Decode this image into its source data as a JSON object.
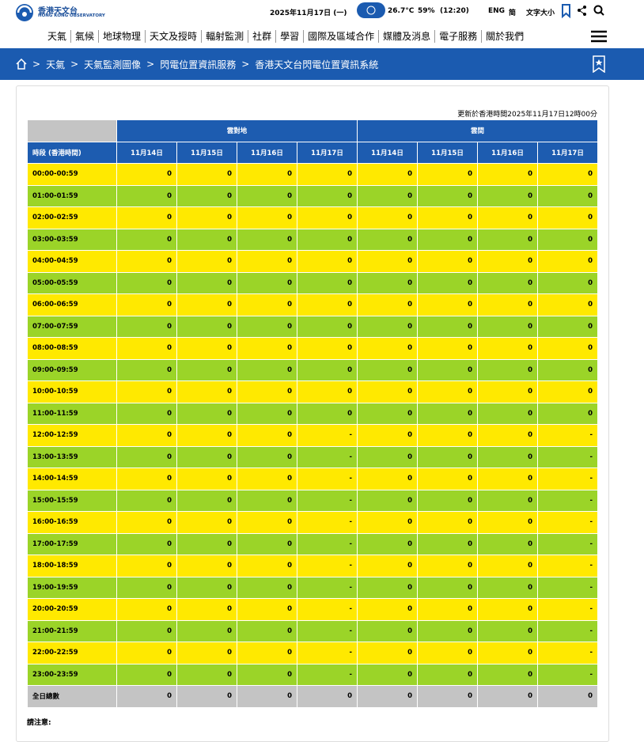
{
  "header": {
    "logo_zh": "香港天文台",
    "logo_en": "HONG KONG OBSERVATORY",
    "date": "2025年11月17日 (一)",
    "temperature": "26.7°C",
    "humidity": "59%",
    "time": "(12:20)",
    "lang_en": "ENG",
    "lang_sc": "简",
    "font_size": "文字大小"
  },
  "nav": [
    "天氣",
    "氣候",
    "地球物理",
    "天文及授時",
    "輻射監測",
    "社群",
    "學習",
    "國際及區域合作",
    "媒體及消息",
    "電子服務",
    "關於我們"
  ],
  "breadcrumb": [
    "天氣",
    "天氣監測圖像",
    "閃電位置資訊服務",
    "香港天文台閃電位置資訊系統"
  ],
  "updated": "更新於香港時間2025年11月17日12時00分",
  "table": {
    "groups": [
      "雲對地",
      "雲間"
    ],
    "period_header": "時段 (香港時間)",
    "dates": [
      "11月14日",
      "11月15日",
      "11月16日",
      "11月17日"
    ],
    "rows": [
      {
        "label": "00:00-00:59",
        "cells": [
          0,
          0,
          0,
          0,
          0,
          0,
          0,
          0
        ]
      },
      {
        "label": "01:00-01:59",
        "cells": [
          0,
          0,
          0,
          0,
          0,
          0,
          0,
          0
        ]
      },
      {
        "label": "02:00-02:59",
        "cells": [
          0,
          0,
          0,
          0,
          0,
          0,
          0,
          0
        ]
      },
      {
        "label": "03:00-03:59",
        "cells": [
          0,
          0,
          0,
          0,
          0,
          0,
          0,
          0
        ]
      },
      {
        "label": "04:00-04:59",
        "cells": [
          0,
          0,
          0,
          0,
          0,
          0,
          0,
          0
        ]
      },
      {
        "label": "05:00-05:59",
        "cells": [
          0,
          0,
          0,
          0,
          0,
          0,
          0,
          0
        ]
      },
      {
        "label": "06:00-06:59",
        "cells": [
          0,
          0,
          0,
          0,
          0,
          0,
          0,
          0
        ]
      },
      {
        "label": "07:00-07:59",
        "cells": [
          0,
          0,
          0,
          0,
          0,
          0,
          0,
          0
        ]
      },
      {
        "label": "08:00-08:59",
        "cells": [
          0,
          0,
          0,
          0,
          0,
          0,
          0,
          0
        ]
      },
      {
        "label": "09:00-09:59",
        "cells": [
          0,
          0,
          0,
          0,
          0,
          0,
          0,
          0
        ]
      },
      {
        "label": "10:00-10:59",
        "cells": [
          0,
          0,
          0,
          0,
          0,
          0,
          0,
          0
        ]
      },
      {
        "label": "11:00-11:59",
        "cells": [
          0,
          0,
          0,
          0,
          0,
          0,
          0,
          0
        ]
      },
      {
        "label": "12:00-12:59",
        "cells": [
          0,
          0,
          0,
          "-",
          0,
          0,
          0,
          "-"
        ]
      },
      {
        "label": "13:00-13:59",
        "cells": [
          0,
          0,
          0,
          "-",
          0,
          0,
          0,
          "-"
        ]
      },
      {
        "label": "14:00-14:59",
        "cells": [
          0,
          0,
          0,
          "-",
          0,
          0,
          0,
          "-"
        ]
      },
      {
        "label": "15:00-15:59",
        "cells": [
          0,
          0,
          0,
          "-",
          0,
          0,
          0,
          "-"
        ]
      },
      {
        "label": "16:00-16:59",
        "cells": [
          0,
          0,
          0,
          "-",
          0,
          0,
          0,
          "-"
        ]
      },
      {
        "label": "17:00-17:59",
        "cells": [
          0,
          0,
          0,
          "-",
          0,
          0,
          0,
          "-"
        ]
      },
      {
        "label": "18:00-18:59",
        "cells": [
          0,
          0,
          0,
          "-",
          0,
          0,
          0,
          "-"
        ]
      },
      {
        "label": "19:00-19:59",
        "cells": [
          0,
          0,
          0,
          "-",
          0,
          0,
          0,
          "-"
        ]
      },
      {
        "label": "20:00-20:59",
        "cells": [
          0,
          0,
          0,
          "-",
          0,
          0,
          0,
          "-"
        ]
      },
      {
        "label": "21:00-21:59",
        "cells": [
          0,
          0,
          0,
          "-",
          0,
          0,
          0,
          "-"
        ]
      },
      {
        "label": "22:00-22:59",
        "cells": [
          0,
          0,
          0,
          "-",
          0,
          0,
          0,
          "-"
        ]
      },
      {
        "label": "23:00-23:59",
        "cells": [
          0,
          0,
          0,
          "-",
          0,
          0,
          0,
          "-"
        ]
      }
    ],
    "total": {
      "label": "全日總數",
      "cells": [
        0,
        0,
        0,
        0,
        0,
        0,
        0,
        0
      ]
    }
  },
  "note": "請注意:"
}
